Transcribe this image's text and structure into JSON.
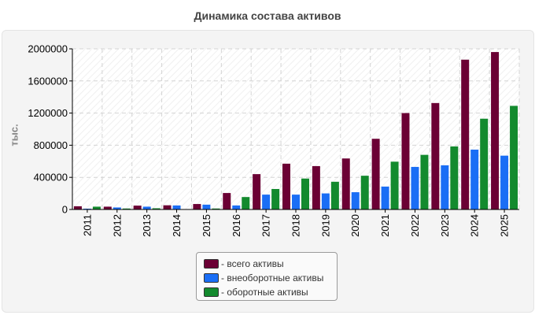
{
  "title": "Динамика состава активов",
  "chart_data": {
    "type": "bar",
    "title": "Динамика состава активов",
    "xlabel": "",
    "ylabel": "тыс.",
    "ylim": [
      0,
      2000000
    ],
    "yticks": [
      0,
      400000,
      800000,
      1200000,
      1600000,
      2000000
    ],
    "grid": true,
    "legend_position": "bottom-center",
    "categories": [
      "2011",
      "2012",
      "2013",
      "2014",
      "2015",
      "2016",
      "2017",
      "2018",
      "2019",
      "2020",
      "2021",
      "2022",
      "2023",
      "2024",
      "2025"
    ],
    "series": [
      {
        "name": "всего активы",
        "color": "#6b0034",
        "values": [
          40000,
          35000,
          48000,
          52000,
          68000,
          205000,
          440000,
          570000,
          540000,
          635000,
          880000,
          1200000,
          1325000,
          1865000,
          1960000
        ]
      },
      {
        "name": "внеоборотные активы",
        "color": "#1a6ef5",
        "values": [
          10000,
          25000,
          35000,
          50000,
          60000,
          50000,
          185000,
          185000,
          200000,
          215000,
          285000,
          530000,
          550000,
          745000,
          670000
        ]
      },
      {
        "name": "оборотные активы",
        "color": "#138a2e",
        "values": [
          35000,
          12000,
          15000,
          5000,
          12000,
          155000,
          255000,
          385000,
          345000,
          420000,
          595000,
          680000,
          785000,
          1130000,
          1290000
        ]
      }
    ]
  },
  "legend": {
    "items": [
      {
        "label": "- всего активы",
        "color": "#6b0034"
      },
      {
        "label": "- внеоборотные активы",
        "color": "#1a6ef5"
      },
      {
        "label": "- оборотные активы",
        "color": "#138a2e"
      }
    ]
  }
}
